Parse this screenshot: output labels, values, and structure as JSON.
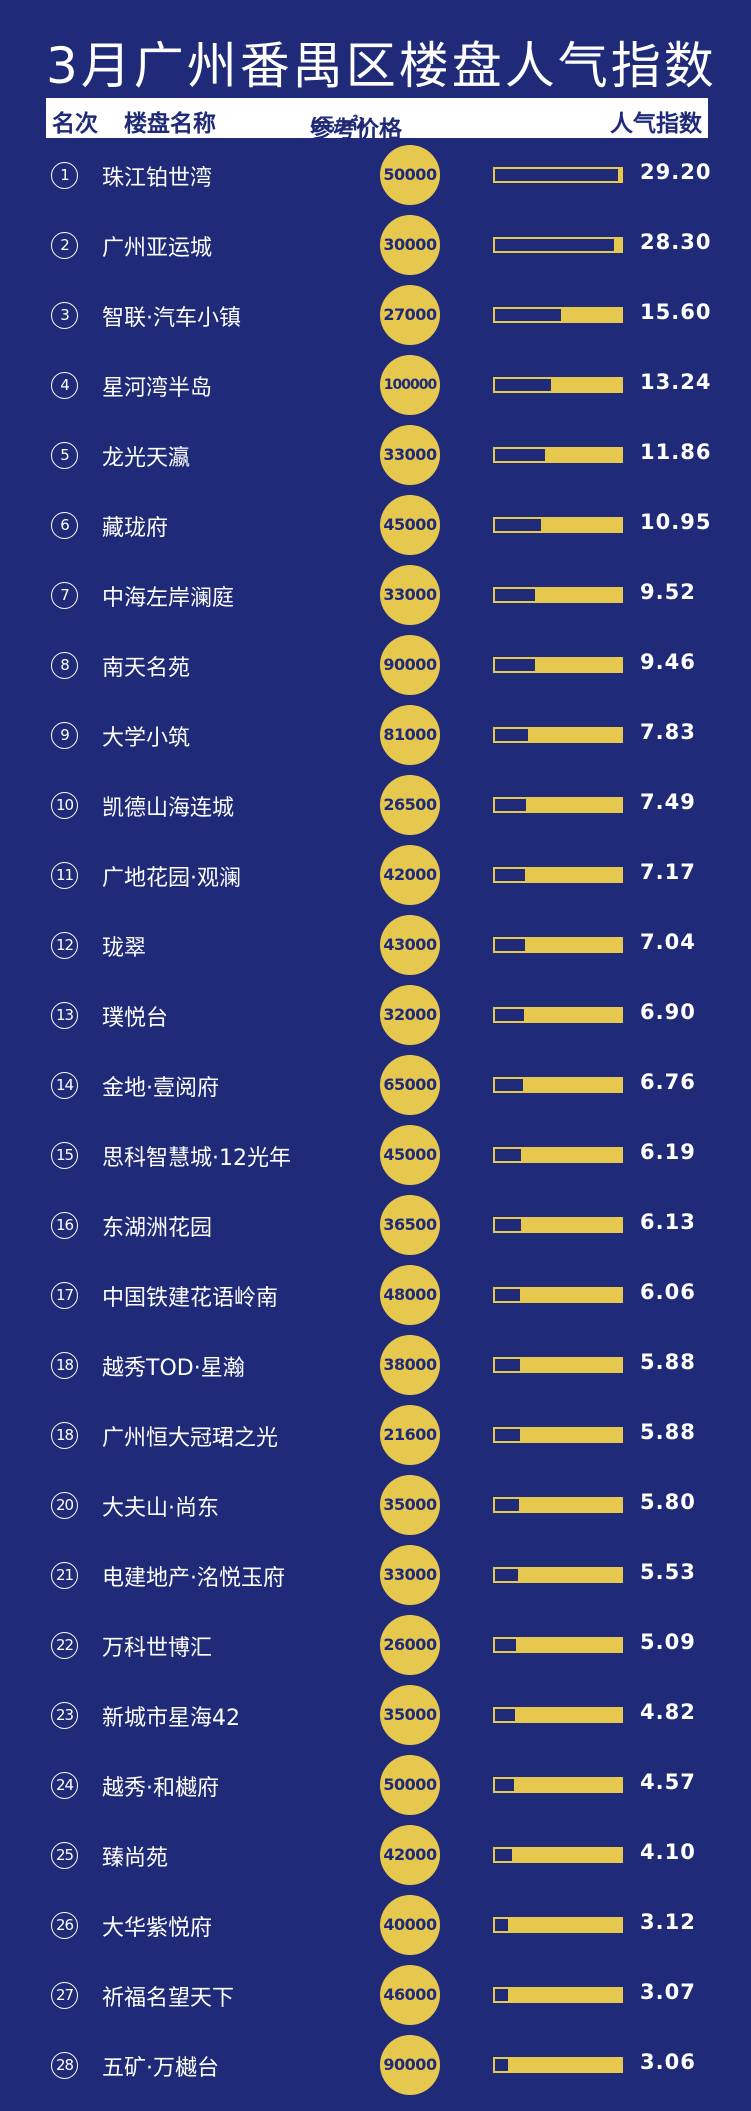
{
  "header": {
    "title": "3月广州番禺区楼盘人气指数",
    "col_rank": "名次",
    "col_name": "楼盘名称",
    "col_price": "参考价格",
    "col_price_unit": "(元/㎡)",
    "col_index": "人气指数"
  },
  "colors": {
    "background": "#1f2a78",
    "accent": "#e6c84f",
    "text": "#ffffff"
  },
  "chart_data": {
    "type": "table",
    "title": "3月广州番禺区楼盘人气指数",
    "index_max": 30,
    "rows": [
      {
        "rank": "1",
        "name": "珠江铂世湾",
        "price": "50000",
        "index": 29.2
      },
      {
        "rank": "2",
        "name": "广州亚运城",
        "price": "30000",
        "index": 28.3
      },
      {
        "rank": "3",
        "name": "智联·汽车小镇",
        "price": "27000",
        "index": 15.6
      },
      {
        "rank": "4",
        "name": "星河湾半岛",
        "price": "100000",
        "index": 13.24
      },
      {
        "rank": "5",
        "name": "龙光天瀛",
        "price": "33000",
        "index": 11.86
      },
      {
        "rank": "6",
        "name": "藏珑府",
        "price": "45000",
        "index": 10.95
      },
      {
        "rank": "7",
        "name": "中海左岸澜庭",
        "price": "33000",
        "index": 9.52
      },
      {
        "rank": "8",
        "name": "南天名苑",
        "price": "90000",
        "index": 9.46
      },
      {
        "rank": "9",
        "name": "大学小筑",
        "price": "81000",
        "index": 7.83
      },
      {
        "rank": "10",
        "name": "凯德山海连城",
        "price": "26500",
        "index": 7.49
      },
      {
        "rank": "11",
        "name": "广地花园·观澜",
        "price": "42000",
        "index": 7.17
      },
      {
        "rank": "12",
        "name": "珑翠",
        "price": "43000",
        "index": 7.04
      },
      {
        "rank": "13",
        "name": "璞悦台",
        "price": "32000",
        "index": 6.9
      },
      {
        "rank": "14",
        "name": "金地·壹阅府",
        "price": "65000",
        "index": 6.76
      },
      {
        "rank": "15",
        "name": "思科智慧城·12光年",
        "price": "45000",
        "index": 6.19
      },
      {
        "rank": "16",
        "name": "东湖洲花园",
        "price": "36500",
        "index": 6.13
      },
      {
        "rank": "17",
        "name": "中国铁建花语岭南",
        "price": "48000",
        "index": 6.06
      },
      {
        "rank": "18",
        "name": "越秀TOD·星瀚",
        "price": "38000",
        "index": 5.88
      },
      {
        "rank": "18",
        "name": "广州恒大冠珺之光",
        "price": "21600",
        "index": 5.88
      },
      {
        "rank": "20",
        "name": "大夫山·尚东",
        "price": "35000",
        "index": 5.8
      },
      {
        "rank": "21",
        "name": "电建地产·洺悦玉府",
        "price": "33000",
        "index": 5.53
      },
      {
        "rank": "22",
        "name": "万科世博汇",
        "price": "26000",
        "index": 5.09
      },
      {
        "rank": "23",
        "name": "新城市星海42",
        "price": "35000",
        "index": 4.82
      },
      {
        "rank": "24",
        "name": "越秀·和樾府",
        "price": "50000",
        "index": 4.57
      },
      {
        "rank": "25",
        "name": "臻尚苑",
        "price": "42000",
        "index": 4.1
      },
      {
        "rank": "26",
        "name": "大华紫悦府",
        "price": "40000",
        "index": 3.12
      },
      {
        "rank": "27",
        "name": "祈福名望天下",
        "price": "46000",
        "index": 3.07
      },
      {
        "rank": "28",
        "name": "五矿·万樾台",
        "price": "90000",
        "index": 3.06
      }
    ]
  }
}
